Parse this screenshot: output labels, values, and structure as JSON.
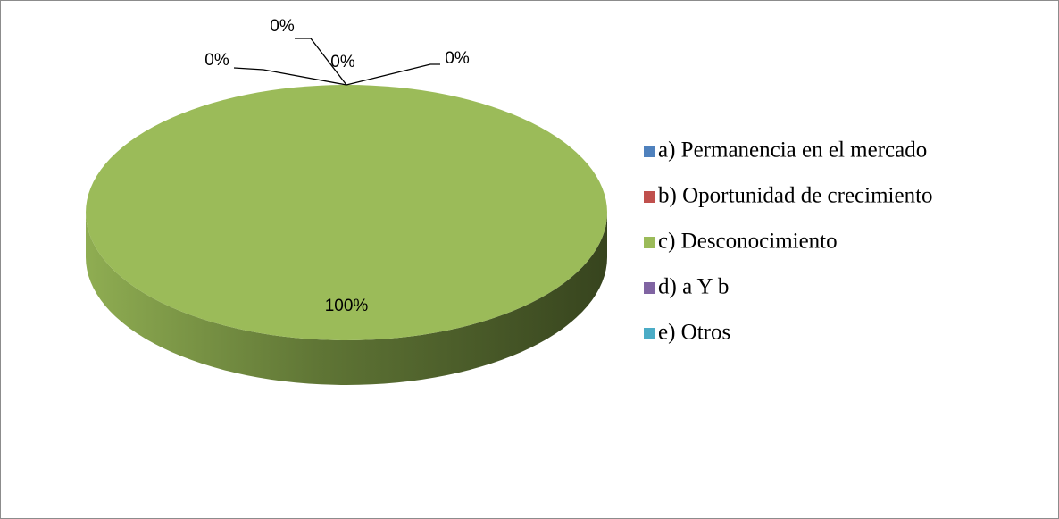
{
  "chart_data": {
    "type": "pie",
    "categories": [
      "a) Permanencia en el mercado",
      "b) Oportunidad de crecimiento",
      "c) Desconocimiento",
      "d) a Y b",
      "e) Otros"
    ],
    "values": [
      0,
      0,
      100,
      0,
      0
    ],
    "value_labels": [
      "0%",
      "0%",
      "100%",
      "0%",
      "0%"
    ],
    "colors": [
      "#4f81bd",
      "#c0504d",
      "#9bbb59",
      "#8064a2",
      "#4bacc6"
    ],
    "legend": "right"
  }
}
